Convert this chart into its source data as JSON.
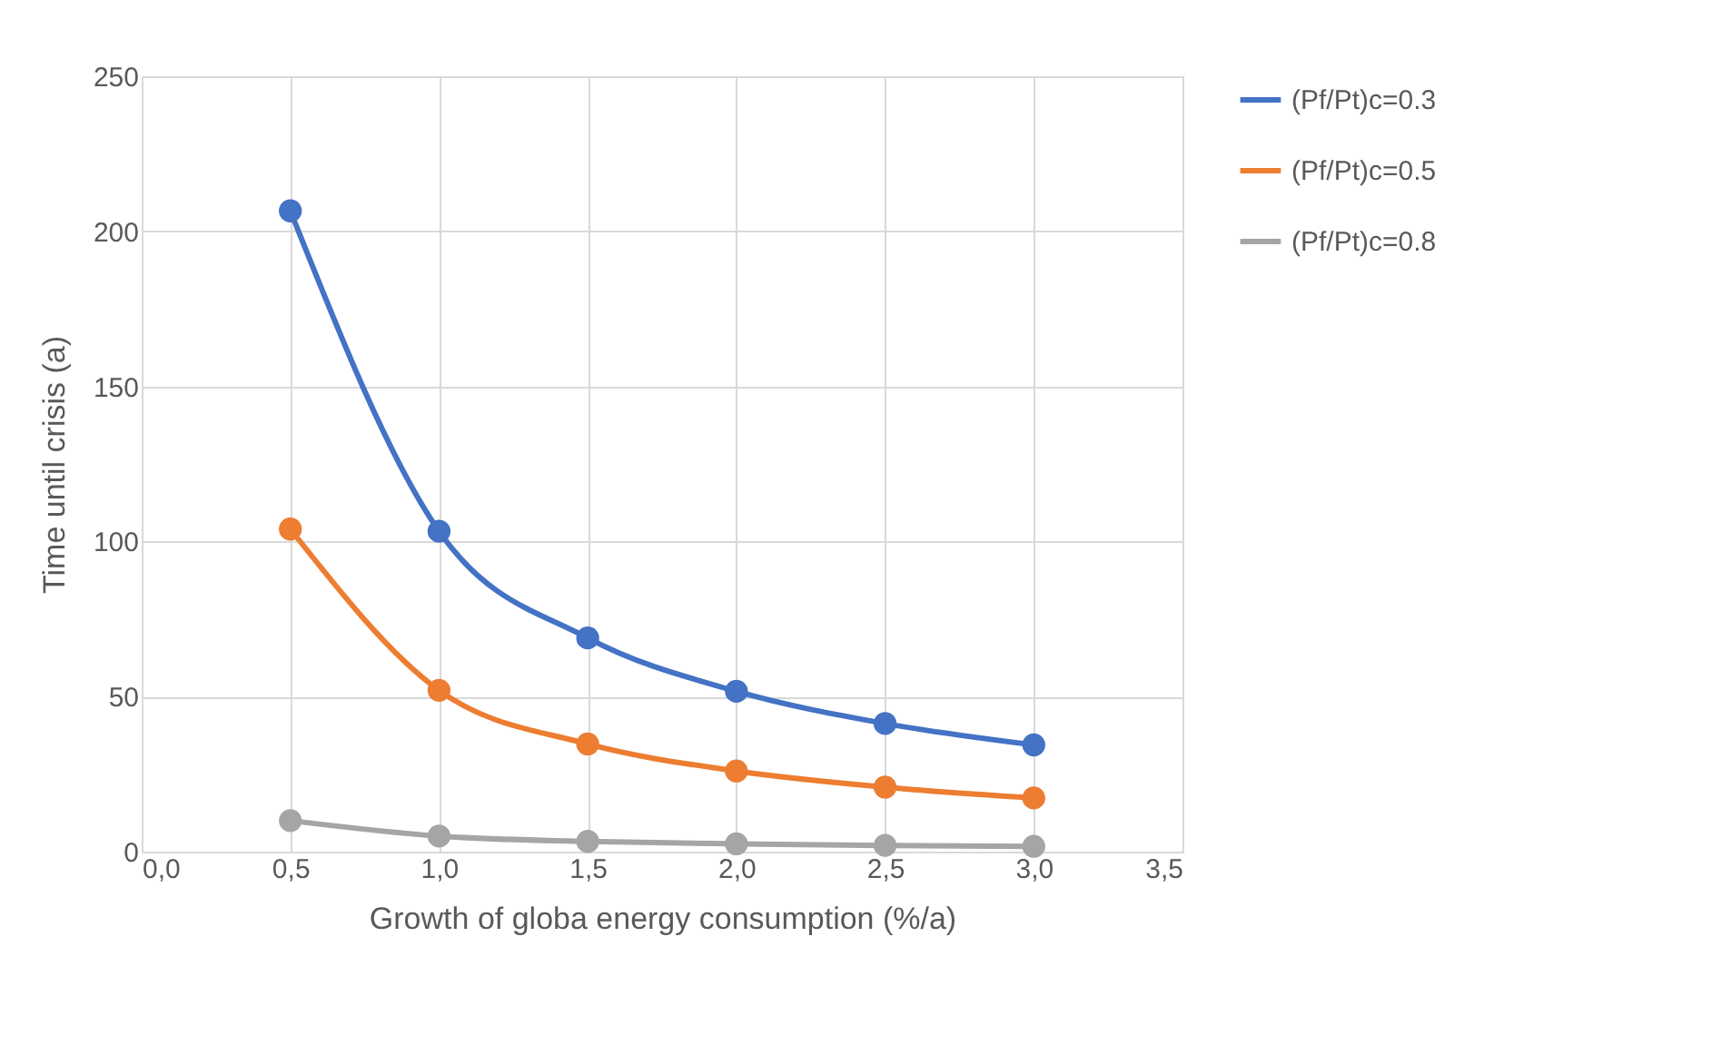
{
  "chart_data": {
    "type": "line",
    "xlabel": "Growth of globa energy consumption (%/a)",
    "ylabel": "Time until crisis (a)",
    "x": [
      0.5,
      1.0,
      1.5,
      2.0,
      2.5,
      3.0
    ],
    "series": [
      {
        "name": "(Pf/Pt)c=0.3",
        "color": "#4472c4",
        "values": [
          206.6,
          103.3,
          68.9,
          51.7,
          41.3,
          34.4
        ]
      },
      {
        "name": "(Pf/Pt)c=0.5",
        "color": "#ed7d31",
        "values": [
          104,
          52,
          34.7,
          26,
          20.8,
          17.3
        ]
      },
      {
        "name": "(Pf/Pt)c=0.8",
        "color": "#a5a5a5",
        "values": [
          10,
          5,
          3.3,
          2.5,
          2,
          1.7
        ]
      }
    ],
    "xlim": [
      0,
      3.5
    ],
    "ylim": [
      0,
      250
    ],
    "xticks": [
      {
        "value": 0,
        "label": "0,0"
      },
      {
        "value": 0.5,
        "label": "0,5"
      },
      {
        "value": 1,
        "label": "1,0"
      },
      {
        "value": 1.5,
        "label": "1,5"
      },
      {
        "value": 2,
        "label": "2,0"
      },
      {
        "value": 2.5,
        "label": "2,5"
      },
      {
        "value": 3,
        "label": "3,0"
      },
      {
        "value": 3.5,
        "label": "3,5"
      }
    ],
    "yticks": [
      0,
      50,
      100,
      150,
      200,
      250
    ],
    "grid": true,
    "legend": "right",
    "marker": "circle",
    "line_style": "solid"
  }
}
